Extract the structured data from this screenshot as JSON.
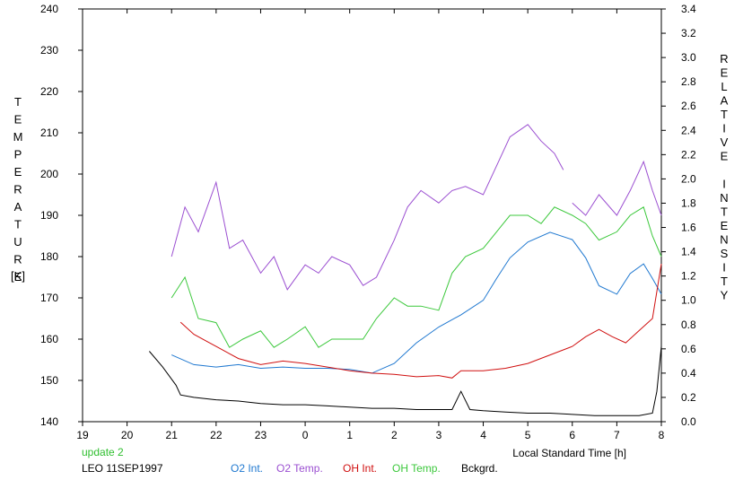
{
  "chart_data": {
    "type": "line",
    "title": "",
    "xlabel": "Local Standard Time [h]",
    "ylabel_left": "TEMPERATURE",
    "ylabel_left_unit": "[K]",
    "ylabel_right": "RELATIVE INTENSITY",
    "x_ticks": [
      "19",
      "20",
      "21",
      "22",
      "23",
      "0",
      "1",
      "2",
      "3",
      "4",
      "5",
      "6",
      "7",
      "8"
    ],
    "xlim": [
      19,
      32
    ],
    "y_left_ticks": [
      "140",
      "150",
      "160",
      "170",
      "180",
      "190",
      "200",
      "210",
      "220",
      "230",
      "240"
    ],
    "ylim_left": [
      140,
      240
    ],
    "y_right_ticks": [
      "0.0",
      "0.2",
      "0.4",
      "0.6",
      "0.8",
      "1.0",
      "1.2",
      "1.4",
      "1.6",
      "1.8",
      "2.0",
      "2.2",
      "2.4",
      "2.6",
      "2.8",
      "3.0",
      "3.2",
      "3.4"
    ],
    "ylim_right": [
      0,
      3.4
    ],
    "grid": false,
    "annotation_update": "update 2",
    "annotation_station": "LEO 11SEP1997",
    "colors": {
      "o2_int": "#1f78d0",
      "o2_temp": "#9b4fd1",
      "oh_int": "#d01010",
      "oh_temp": "#3cc83c",
      "bckgrd": "#000000",
      "update": "#2fbf2f"
    },
    "series": [
      {
        "name": "O2 Int.",
        "axis": "right",
        "x": [
          21.0,
          21.5,
          22.0,
          22.5,
          23.0,
          23.5,
          24.0,
          24.5,
          25.0,
          25.5,
          26.0,
          26.5,
          27.0,
          27.5,
          28.0,
          28.3,
          28.6,
          29.0,
          29.5,
          30.0,
          30.3,
          30.6,
          31.0,
          31.3,
          31.6,
          31.8,
          32.0
        ],
        "y": [
          0.55,
          0.47,
          0.45,
          0.47,
          0.44,
          0.45,
          0.44,
          0.44,
          0.43,
          0.4,
          0.48,
          0.65,
          0.78,
          0.88,
          1.0,
          1.18,
          1.35,
          1.48,
          1.56,
          1.5,
          1.35,
          1.12,
          1.05,
          1.22,
          1.3,
          1.18,
          1.05
        ]
      },
      {
        "name": "O2 Temp.",
        "axis": "left",
        "x": [
          21.0,
          21.3,
          21.6,
          22.0,
          22.3,
          22.6,
          23.0,
          23.3,
          23.6,
          24.0,
          24.3,
          24.6,
          25.0,
          25.3,
          25.6,
          26.0,
          26.3,
          26.6,
          27.0,
          27.3,
          27.6,
          28.0,
          28.3,
          28.6,
          29.0,
          29.3,
          29.6,
          29.8
        ],
        "y": [
          180,
          192,
          186,
          198,
          182,
          184,
          176,
          180,
          172,
          178,
          176,
          180,
          178,
          173,
          175,
          184,
          192,
          196,
          193,
          196,
          197,
          195,
          202,
          209,
          212,
          208,
          205,
          201
        ]
      },
      {
        "name": "O2 Temp.",
        "axis": "left",
        "x": [
          30.0,
          30.3,
          30.6,
          31.0,
          31.3,
          31.6,
          31.8,
          32.0
        ],
        "y": [
          193,
          190,
          195,
          190,
          196,
          203,
          196,
          190
        ]
      },
      {
        "name": "OH Int.",
        "axis": "right",
        "x": [
          21.2,
          21.5,
          22.0,
          22.5,
          23.0,
          23.5,
          24.0,
          24.5,
          25.0,
          25.5,
          26.0,
          26.5,
          27.0,
          27.3,
          27.5,
          28.0,
          28.5,
          29.0,
          29.5,
          30.0,
          30.3,
          30.6,
          30.9,
          31.2,
          31.5,
          31.8,
          32.0
        ],
        "y": [
          0.82,
          0.72,
          0.62,
          0.52,
          0.47,
          0.5,
          0.48,
          0.45,
          0.42,
          0.4,
          0.39,
          0.37,
          0.38,
          0.36,
          0.42,
          0.42,
          0.44,
          0.48,
          0.55,
          0.62,
          0.7,
          0.76,
          0.7,
          0.65,
          0.75,
          0.85,
          1.3
        ]
      },
      {
        "name": "OH Temp.",
        "axis": "left",
        "x": [
          21.0,
          21.3,
          21.6,
          22.0,
          22.3,
          22.6,
          23.0,
          23.3,
          23.6,
          24.0,
          24.3,
          24.6,
          25.0,
          25.3,
          25.6,
          26.0,
          26.3,
          26.6,
          27.0,
          27.3,
          27.6,
          28.0,
          28.3,
          28.6,
          29.0,
          29.3,
          29.6,
          30.0,
          30.3,
          30.6,
          31.0,
          31.3,
          31.6,
          31.8,
          32.0
        ],
        "y": [
          170,
          175,
          165,
          164,
          158,
          160,
          162,
          158,
          160,
          163,
          158,
          160,
          160,
          160,
          165,
          170,
          168,
          168,
          167,
          176,
          180,
          182,
          186,
          190,
          190,
          188,
          192,
          190,
          188,
          184,
          186,
          190,
          192,
          185,
          180
        ]
      },
      {
        "name": "Bckgrd.",
        "axis": "right",
        "x": [
          20.5,
          20.8,
          21.0,
          21.1,
          21.2,
          21.5,
          22.0,
          22.5,
          23.0,
          23.5,
          24.0,
          24.5,
          25.0,
          25.5,
          26.0,
          26.5,
          27.0,
          27.3,
          27.5,
          27.7,
          28.0,
          28.5,
          29.0,
          29.5,
          30.0,
          30.5,
          31.0,
          31.5,
          31.8,
          31.9,
          32.0
        ],
        "y": [
          0.58,
          0.45,
          0.35,
          0.3,
          0.22,
          0.2,
          0.18,
          0.17,
          0.15,
          0.14,
          0.14,
          0.13,
          0.12,
          0.11,
          0.11,
          0.1,
          0.1,
          0.1,
          0.25,
          0.1,
          0.09,
          0.08,
          0.07,
          0.07,
          0.06,
          0.05,
          0.05,
          0.05,
          0.07,
          0.25,
          0.62
        ]
      }
    ]
  }
}
